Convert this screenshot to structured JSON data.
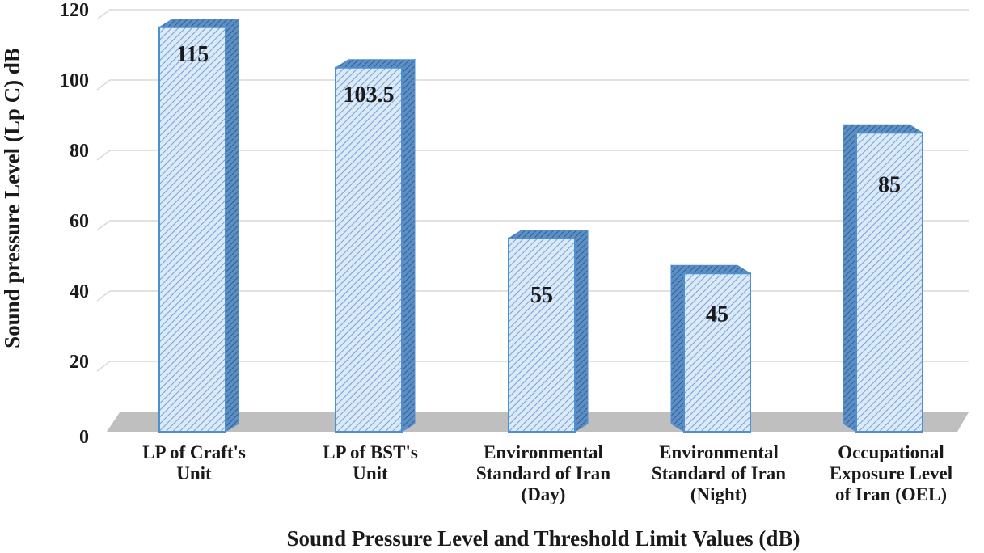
{
  "chart_data": {
    "type": "bar",
    "title": "",
    "xlabel": "Sound Pressure Level and Threshold Limit Values (dB)",
    "ylabel": "Sound pressure Level (Lp C) dB",
    "ylim": [
      0,
      120
    ],
    "yticks": [
      0,
      20,
      40,
      60,
      80,
      100,
      120
    ],
    "grid": true,
    "categories": [
      [
        "LP of Craft's",
        "Unit"
      ],
      [
        "LP of BST's",
        "Unit"
      ],
      [
        "Environmental",
        "Standard of Iran",
        "(Day)"
      ],
      [
        "Environmental",
        "Standard of Iran",
        "(Night)"
      ],
      [
        "Occupational",
        "Exposure Level",
        "of Iran (OEL)"
      ]
    ],
    "values": [
      115,
      103.5,
      55,
      45,
      85
    ],
    "data_labels": [
      "115",
      "103.5",
      "55",
      "45",
      "85"
    ],
    "colors": {
      "bar_fill": "#dce9f7",
      "bar_stripe": "#6fa0d8",
      "bar_edge": "#4f8fd0",
      "bar_side": "#3f7fc2",
      "floor": "#bfbfbf",
      "grid": "#d9d9d9"
    }
  }
}
